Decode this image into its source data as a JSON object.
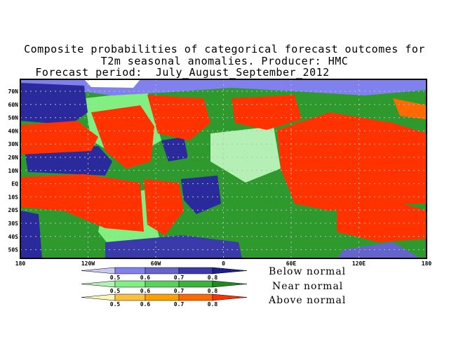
{
  "title": {
    "line1": "Composite probabilities of categorical forecast outcomes for",
    "line2": "T2m seasonal anomalies. Producer: HMC",
    "line3": "Forecast period:  July_August_September_2012"
  },
  "axes": {
    "lat_labels": [
      "70N",
      "60N",
      "50N",
      "40N",
      "30N",
      "20N",
      "10N",
      "EQ",
      "10S",
      "20S",
      "30S",
      "40S",
      "50S"
    ],
    "lon_labels": [
      "180",
      "120W",
      "60W",
      "0",
      "60E",
      "120E",
      "180"
    ]
  },
  "legend": {
    "ticks": [
      "0.5",
      "0.6",
      "0.7",
      "0.8"
    ],
    "rows": [
      {
        "label": "Below normal",
        "colors": [
          "#c8c8f0",
          "#8080ee",
          "#6464cc",
          "#3a3aaa",
          "#1e1e8c"
        ]
      },
      {
        "label": "Near normal",
        "colors": [
          "#b4f0b4",
          "#80f080",
          "#5ad25a",
          "#3cb43c",
          "#1e8c1e"
        ]
      },
      {
        "label": "Above normal",
        "colors": [
          "#fff5b4",
          "#ffc040",
          "#ffa000",
          "#ff6a00",
          "#ff3200"
        ]
      }
    ]
  }
}
